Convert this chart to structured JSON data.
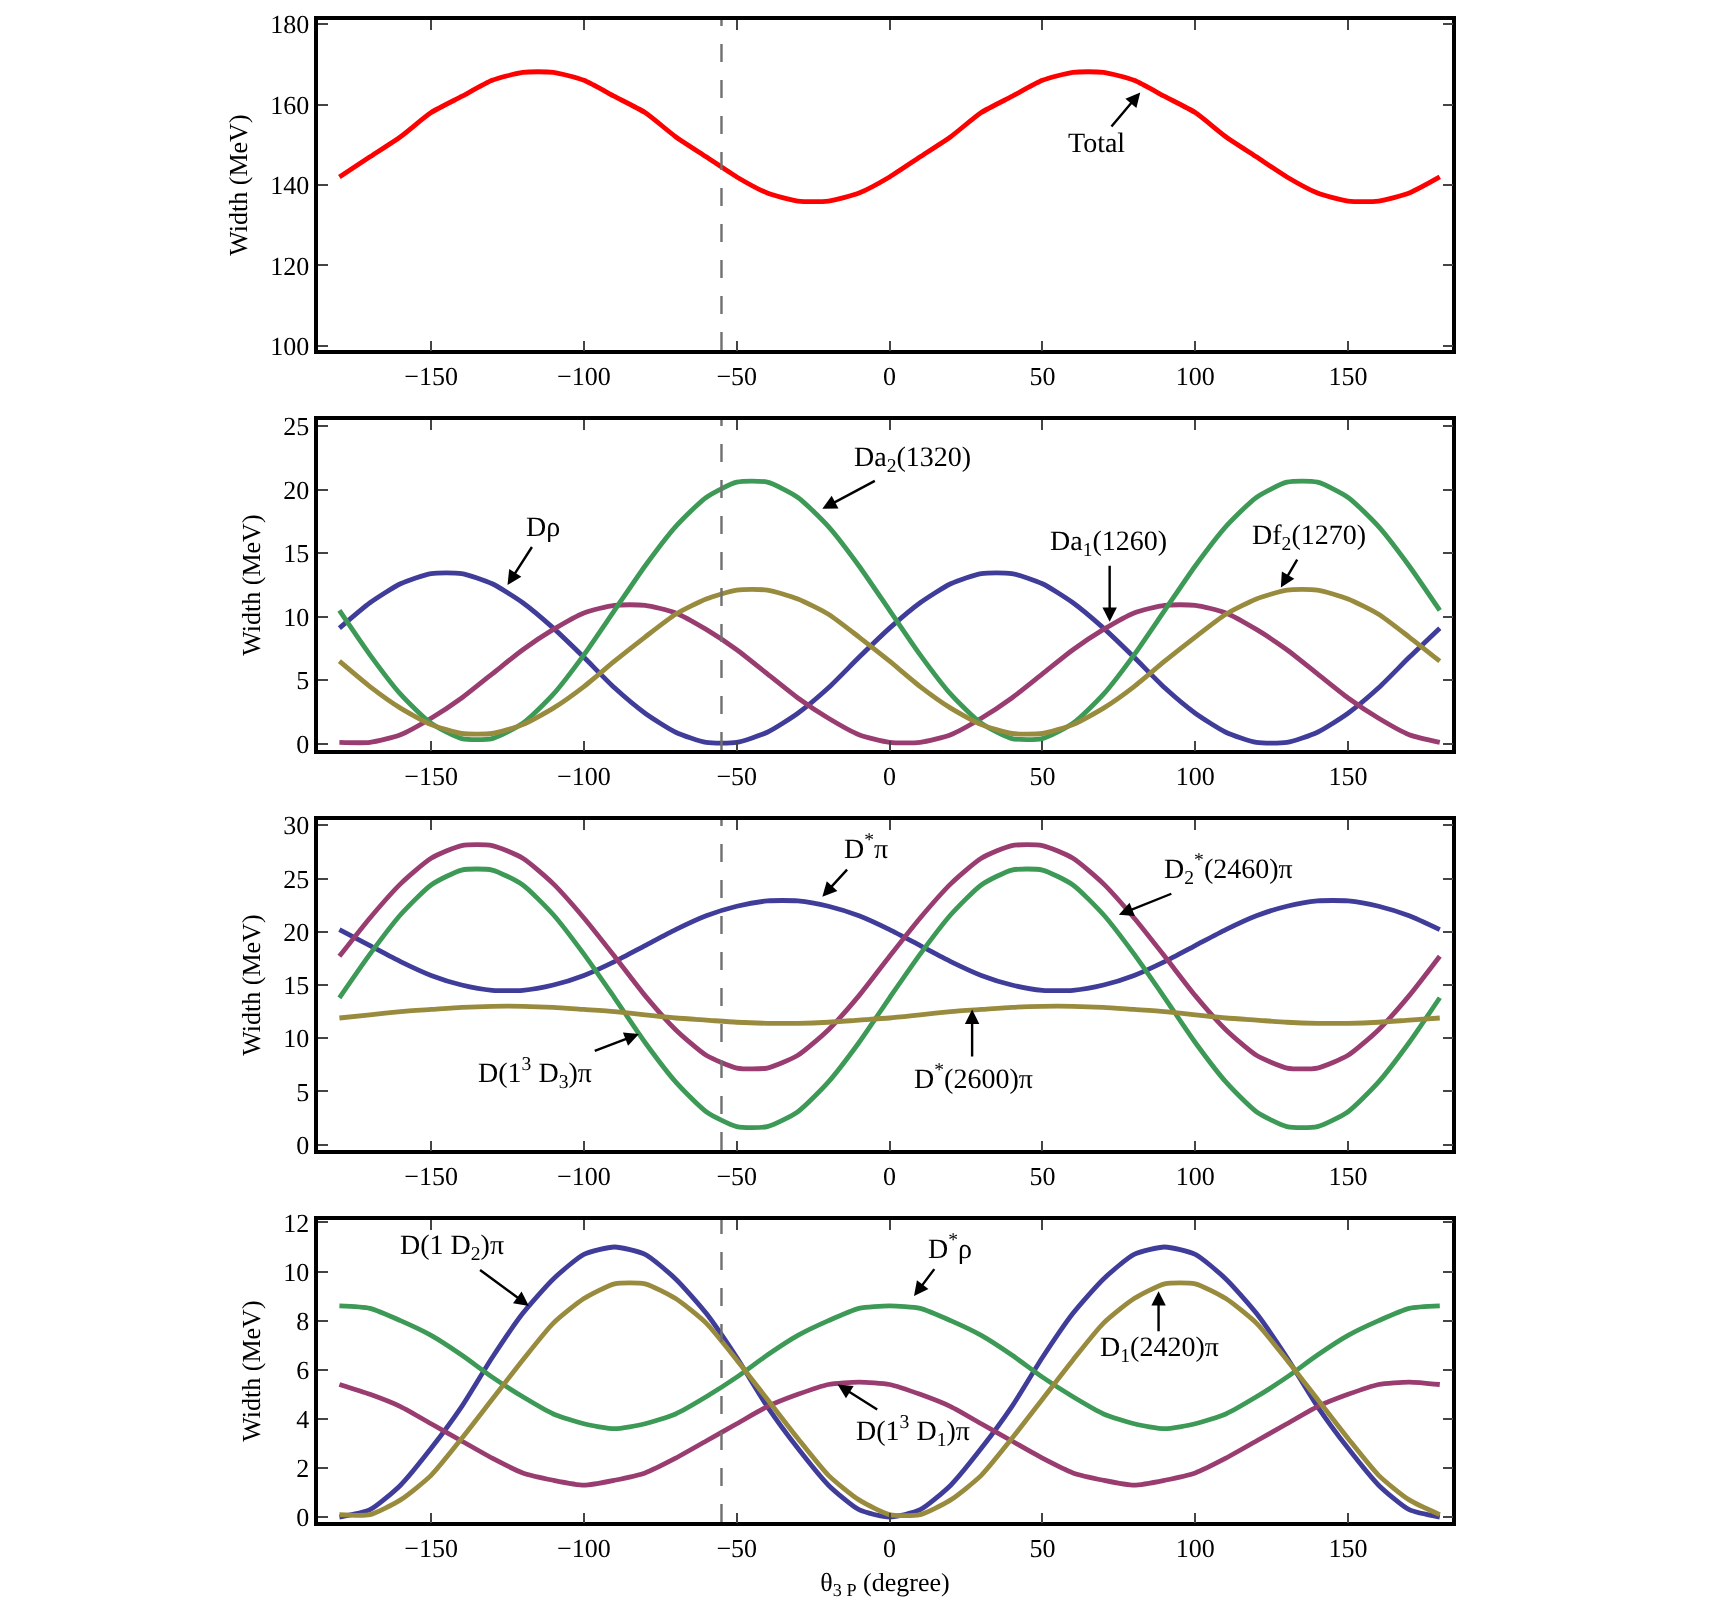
{
  "chart_data": [
    {
      "type": "line",
      "ylabel": "Width (MeV)",
      "x": [
        -180,
        -170,
        -160,
        -150,
        -140,
        -130,
        -120,
        -110,
        -100,
        -90,
        -80,
        -70,
        -60,
        -50,
        -40,
        -30,
        -20,
        -10,
        0,
        10,
        20,
        30,
        40,
        50,
        60,
        70,
        80,
        90,
        100,
        110,
        120,
        130,
        140,
        150,
        160,
        170,
        180
      ],
      "xlim": [
        -187,
        184
      ],
      "ylim": [
        99,
        181
      ],
      "xticks": [
        -150,
        -100,
        -50,
        0,
        50,
        100,
        150
      ],
      "yticks": [
        100,
        120,
        140,
        160,
        180
      ],
      "series": [
        {
          "color": "#ff0000",
          "values": [
            142,
            147,
            152,
            158,
            162,
            166,
            168,
            168,
            166,
            162,
            158,
            152,
            147,
            142,
            138,
            136,
            136,
            138,
            142,
            147,
            152,
            158,
            162,
            166,
            168,
            168,
            166,
            162,
            158,
            152,
            147,
            142,
            138,
            136,
            136,
            138,
            142
          ]
        }
      ],
      "ref_lines": [
        {
          "axis": "x",
          "value": -55,
          "color": "#707070",
          "line_style": "dashed"
        }
      ],
      "annotations": [
        {
          "text": "Total",
          "x": 82,
          "y": 163
        }
      ]
    },
    {
      "type": "line",
      "ylabel": "Width (MeV)",
      "x": [
        -180,
        -170,
        -160,
        -150,
        -140,
        -130,
        -120,
        -110,
        -100,
        -90,
        -80,
        -70,
        -60,
        -50,
        -40,
        -30,
        -20,
        -10,
        0,
        10,
        20,
        30,
        40,
        50,
        60,
        70,
        80,
        90,
        100,
        110,
        120,
        130,
        140,
        150,
        160,
        170,
        180
      ],
      "xlim": [
        -187,
        184
      ],
      "ylim": [
        -0.5,
        25.5
      ],
      "xticks": [
        -150,
        -100,
        -50,
        0,
        50,
        100,
        150
      ],
      "yticks": [
        0,
        5,
        10,
        15,
        20,
        25
      ],
      "series": [
        {
          "color": "#3f3d99",
          "values": [
            9.1,
            11.1,
            12.6,
            13.4,
            13.4,
            12.6,
            11.1,
            9.1,
            6.8,
            4.4,
            2.4,
            0.9,
            0.1,
            0.1,
            0.9,
            2.4,
            4.4,
            6.8,
            9.1,
            11.1,
            12.6,
            13.4,
            13.4,
            12.6,
            11.1,
            9.1,
            6.8,
            4.4,
            2.4,
            0.9,
            0.1,
            0.1,
            0.9,
            2.4,
            4.4,
            6.8,
            9.1
          ]
        },
        {
          "color": "#993d71",
          "values": [
            0.1,
            0.1,
            0.7,
            2.0,
            3.6,
            5.5,
            7.4,
            9.0,
            10.3,
            10.9,
            10.9,
            10.3,
            9.0,
            7.4,
            5.5,
            3.6,
            2.0,
            0.7,
            0.1,
            0.1,
            0.7,
            2.0,
            3.6,
            5.5,
            7.4,
            9.0,
            10.3,
            10.9,
            10.9,
            10.3,
            9.0,
            7.4,
            5.5,
            3.6,
            2.0,
            0.7,
            0.1
          ]
        },
        {
          "color": "#3d9956",
          "values": [
            10.5,
            7.0,
            3.9,
            1.6,
            0.4,
            0.4,
            1.6,
            3.9,
            7.0,
            10.5,
            14.0,
            17.1,
            19.4,
            20.6,
            20.6,
            19.4,
            17.1,
            14.0,
            10.5,
            7.0,
            3.9,
            1.6,
            0.4,
            0.4,
            1.6,
            3.9,
            7.0,
            10.5,
            14.0,
            17.1,
            19.4,
            20.6,
            20.6,
            19.4,
            17.1,
            14.0,
            10.5
          ]
        },
        {
          "color": "#998b3d",
          "values": [
            6.5,
            4.5,
            2.8,
            1.5,
            0.8,
            0.8,
            1.5,
            2.8,
            4.5,
            6.5,
            8.4,
            10.2,
            11.4,
            12.1,
            12.1,
            11.4,
            10.2,
            8.4,
            6.5,
            4.5,
            2.8,
            1.5,
            0.8,
            0.8,
            1.5,
            2.8,
            4.5,
            6.5,
            8.4,
            10.2,
            11.4,
            12.1,
            12.1,
            11.4,
            10.2,
            8.4,
            6.5
          ]
        }
      ],
      "ref_lines": [
        {
          "axis": "x",
          "value": -55,
          "color": "#707070",
          "line_style": "dashed"
        }
      ],
      "annotations": [
        {
          "text": "Dρ",
          "x": -125,
          "y": 12.5
        },
        {
          "text": "Da$_{2}$(1320)",
          "x": -22,
          "y": 18.5
        },
        {
          "text": "Da$_{1}$(1260)",
          "x": 72,
          "y": 9.6
        },
        {
          "text": "Df$_{2}$(1270)",
          "x": 128,
          "y": 12.3
        }
      ]
    },
    {
      "type": "line",
      "ylabel": "Width (MeV)",
      "x": [
        -180,
        -170,
        -160,
        -150,
        -140,
        -130,
        -120,
        -110,
        -100,
        -90,
        -80,
        -70,
        -60,
        -50,
        -40,
        -30,
        -20,
        -10,
        0,
        10,
        20,
        30,
        40,
        50,
        60,
        70,
        80,
        90,
        100,
        110,
        120,
        130,
        140,
        150,
        160,
        170,
        180
      ],
      "xlim": [
        -187,
        184
      ],
      "ylim": [
        -0.5,
        30.5
      ],
      "xticks": [
        -150,
        -100,
        -50,
        0,
        50,
        100,
        150
      ],
      "yticks": [
        0,
        5,
        10,
        15,
        20,
        25,
        30
      ],
      "series": [
        {
          "color": "#3f3d99",
          "values": [
            20.2,
            18.7,
            17.2,
            15.9,
            15.0,
            14.5,
            14.5,
            15.0,
            15.9,
            17.2,
            18.7,
            20.2,
            21.5,
            22.4,
            22.9,
            22.9,
            22.4,
            21.5,
            20.2,
            18.7,
            17.2,
            15.9,
            15.0,
            14.5,
            14.5,
            15.0,
            15.9,
            17.2,
            18.7,
            20.2,
            21.5,
            22.4,
            22.9,
            22.9,
            22.4,
            21.5,
            20.2
          ]
        },
        {
          "color": "#993d71",
          "values": [
            17.7,
            21.3,
            24.5,
            26.9,
            28.1,
            28.1,
            26.9,
            24.5,
            21.3,
            17.7,
            14.0,
            10.8,
            8.4,
            7.2,
            7.2,
            8.4,
            10.8,
            14.0,
            17.7,
            21.3,
            24.5,
            26.9,
            28.1,
            28.1,
            26.9,
            24.5,
            21.3,
            17.7,
            14.0,
            10.8,
            8.4,
            7.2,
            7.2,
            8.4,
            10.8,
            14.0,
            17.7
          ]
        },
        {
          "color": "#3d9956",
          "values": [
            13.8,
            17.9,
            21.6,
            24.4,
            25.8,
            25.8,
            24.4,
            21.6,
            17.9,
            13.8,
            9.6,
            5.9,
            3.1,
            1.7,
            1.7,
            3.1,
            5.9,
            9.6,
            13.8,
            17.9,
            21.6,
            24.4,
            25.8,
            25.8,
            24.4,
            21.6,
            17.9,
            13.8,
            9.6,
            5.9,
            3.1,
            1.7,
            1.7,
            3.1,
            5.9,
            9.6,
            13.8
          ]
        },
        {
          "color": "#998b3d",
          "values": [
            11.9,
            12.2,
            12.5,
            12.7,
            12.9,
            13.0,
            13.0,
            12.9,
            12.7,
            12.5,
            12.2,
            11.9,
            11.7,
            11.5,
            11.4,
            11.4,
            11.5,
            11.7,
            11.9,
            12.2,
            12.5,
            12.7,
            12.9,
            13.0,
            13.0,
            12.9,
            12.7,
            12.5,
            12.2,
            11.9,
            11.7,
            11.5,
            11.4,
            11.4,
            11.5,
            11.7,
            11.9
          ]
        }
      ],
      "ref_lines": [
        {
          "axis": "x",
          "value": -55,
          "color": "#707070",
          "line_style": "dashed"
        }
      ],
      "annotations": [
        {
          "text": "D$^{*}$π",
          "x": -22,
          "y": 23.3
        },
        {
          "text": "D$_{2}$$^{*}$(2460)π",
          "x": 75,
          "y": 21.6
        },
        {
          "text": "D(1$^{3}$ D$_{3}$)π",
          "x": -82,
          "y": 10.4
        },
        {
          "text": "D$^{*}$(2600)π",
          "x": 27,
          "y": 12.7
        }
      ]
    },
    {
      "type": "line",
      "ylabel": "Width (MeV)",
      "xlabel": "θ$_{3 P}$ (degree)",
      "x": [
        -180,
        -170,
        -160,
        -150,
        -140,
        -130,
        -120,
        -110,
        -100,
        -90,
        -80,
        -70,
        -60,
        -50,
        -40,
        -30,
        -20,
        -10,
        0,
        10,
        20,
        30,
        40,
        50,
        60,
        70,
        80,
        90,
        100,
        110,
        120,
        130,
        140,
        150,
        160,
        170,
        180
      ],
      "xlim": [
        -187,
        184
      ],
      "ylim": [
        -0.2,
        12.1
      ],
      "xticks": [
        -150,
        -100,
        -50,
        0,
        50,
        100,
        150
      ],
      "yticks": [
        0,
        2,
        4,
        6,
        8,
        10,
        12
      ],
      "series": [
        {
          "color": "#3f3d99",
          "values": [
            0,
            0.3,
            1.3,
            2.8,
            4.5,
            6.5,
            8.3,
            9.7,
            10.7,
            11,
            10.7,
            9.7,
            8.3,
            6.5,
            4.5,
            2.8,
            1.3,
            0.3,
            0,
            0.3,
            1.3,
            2.8,
            4.5,
            6.5,
            8.3,
            9.7,
            10.7,
            11,
            10.7,
            9.7,
            8.3,
            6.5,
            4.5,
            2.8,
            1.3,
            0.3,
            0
          ]
        },
        {
          "color": "#993d71",
          "values": [
            5.4,
            5.0,
            4.5,
            3.8,
            3.1,
            2.4,
            1.8,
            1.5,
            1.3,
            1.5,
            1.8,
            2.4,
            3.1,
            3.8,
            4.5,
            5.0,
            5.4,
            5.5,
            5.4,
            5.0,
            4.5,
            3.8,
            3.1,
            2.4,
            1.8,
            1.5,
            1.3,
            1.5,
            1.8,
            2.4,
            3.1,
            3.8,
            4.5,
            5.0,
            5.4,
            5.5,
            5.4
          ]
        },
        {
          "color": "#3d9956",
          "values": [
            8.6,
            8.5,
            8.0,
            7.4,
            6.6,
            5.7,
            4.9,
            4.2,
            3.8,
            3.6,
            3.8,
            4.2,
            4.9,
            5.7,
            6.6,
            7.4,
            8.0,
            8.5,
            8.6,
            8.5,
            8.0,
            7.4,
            6.6,
            5.7,
            4.9,
            4.2,
            3.8,
            3.6,
            3.8,
            4.2,
            4.9,
            5.7,
            6.6,
            7.4,
            8.0,
            8.5,
            8.6
          ]
        },
        {
          "color": "#998b3d",
          "values": [
            0.1,
            0.1,
            0.7,
            1.7,
            3.2,
            4.8,
            6.4,
            7.9,
            8.9,
            9.5,
            9.5,
            8.9,
            7.9,
            6.4,
            4.8,
            3.2,
            1.7,
            0.7,
            0.1,
            0.1,
            0.7,
            1.7,
            3.2,
            4.8,
            6.4,
            7.9,
            8.9,
            9.5,
            9.5,
            8.9,
            7.9,
            6.4,
            4.8,
            3.2,
            1.7,
            0.7,
            0.1
          ]
        }
      ],
      "ref_lines": [
        {
          "axis": "x",
          "value": -55,
          "color": "#707070",
          "line_style": "dashed"
        }
      ],
      "annotations": [
        {
          "text": "D(1 D$_{2}$)π",
          "x": -118,
          "y": 8.6
        },
        {
          "text": "D$^{*}$ρ",
          "x": 8,
          "y": 9.0
        },
        {
          "text": "D$_{1}$(2420)π",
          "x": 88,
          "y": 9.2
        },
        {
          "text": "D(1$^{3}$ D$_{1}$)π",
          "x": -17,
          "y": 5.4
        }
      ]
    }
  ]
}
